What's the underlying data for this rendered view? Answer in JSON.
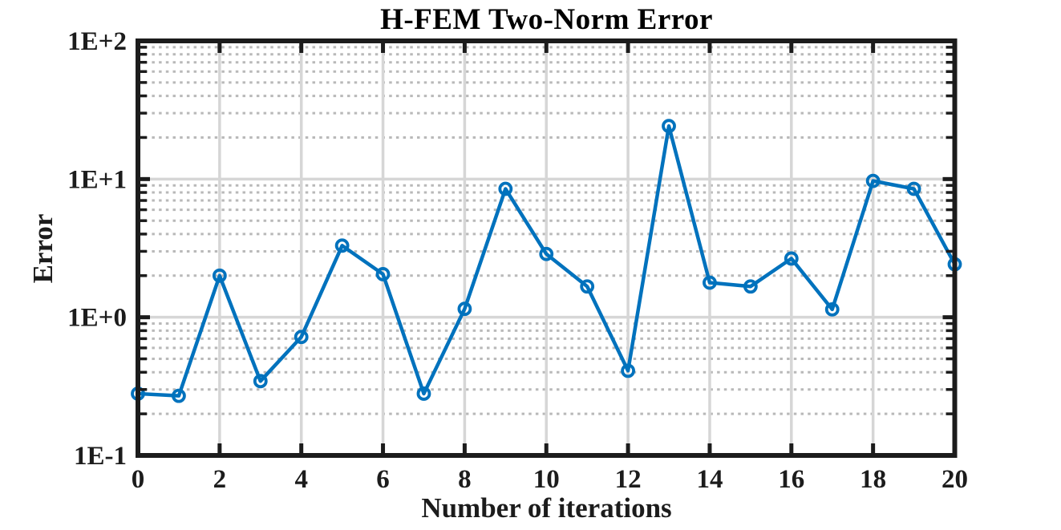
{
  "chart_data": {
    "type": "line",
    "title": "H-FEM Two-Norm Error",
    "xlabel": "Number of iterations",
    "ylabel": "Error",
    "x": [
      0,
      1,
      2,
      3,
      4,
      5,
      6,
      7,
      8,
      9,
      10,
      11,
      12,
      13,
      14,
      15,
      16,
      17,
      18,
      19,
      20
    ],
    "y": [
      0.28,
      0.27,
      2.0,
      0.345,
      0.72,
      3.3,
      2.05,
      0.28,
      1.15,
      8.5,
      2.87,
      1.67,
      0.41,
      24.2,
      1.78,
      1.67,
      2.66,
      1.14,
      9.7,
      8.5,
      2.42
    ],
    "xlim": [
      0,
      20
    ],
    "ylim": [
      0.1,
      100
    ],
    "y_scale": "log",
    "x_scale": "linear",
    "x_tick_values": [
      0,
      2,
      4,
      6,
      8,
      10,
      12,
      14,
      16,
      18,
      20
    ],
    "x_tick_labels": [
      "0",
      "2",
      "4",
      "6",
      "8",
      "10",
      "12",
      "14",
      "16",
      "18",
      "20"
    ],
    "y_tick_values": [
      0.1,
      1,
      10,
      100
    ],
    "y_tick_labels": [
      "1E-1",
      "1E+0",
      "1E+1",
      "1E+2"
    ],
    "grid": {
      "major": "solid",
      "minor": "dotted",
      "minor_axis": "y-only"
    },
    "legend": "none",
    "marker": "hollow-circle",
    "colors": {
      "line": "#0072BD",
      "axis": "#1c1c1c",
      "major_grid": "#d6d6d6",
      "minor_grid": "#b9b9b9",
      "text": "#1c1c1c",
      "title": "#000000",
      "background": "#ffffff"
    }
  }
}
